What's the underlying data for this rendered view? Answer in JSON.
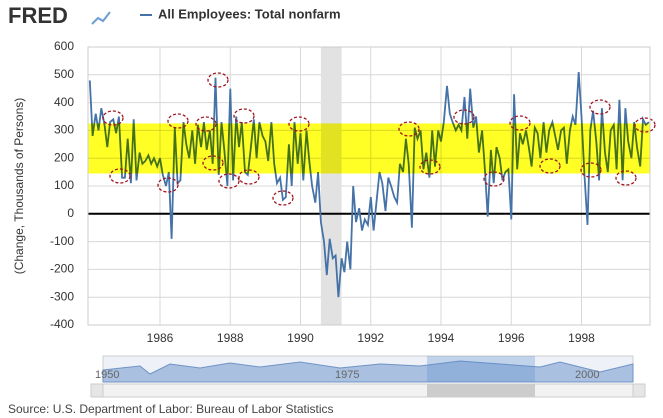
{
  "header": {
    "logo": "FRED"
  },
  "chart_data": {
    "type": "line",
    "y_label": "(Change, Thousands of Persons)",
    "source": "Source: U.S. Department of Labor: Bureau of Labor Statistics",
    "x": [
      1984.0,
      1984.08,
      1984.17,
      1984.25,
      1984.33,
      1984.42,
      1984.5,
      1984.58,
      1984.67,
      1984.75,
      1984.83,
      1984.92,
      1985.0,
      1985.08,
      1985.17,
      1985.25,
      1985.33,
      1985.42,
      1985.5,
      1985.58,
      1985.67,
      1985.75,
      1985.83,
      1985.92,
      1986.0,
      1986.08,
      1986.17,
      1986.25,
      1986.33,
      1986.42,
      1986.5,
      1986.58,
      1986.67,
      1986.75,
      1986.83,
      1986.92,
      1987.0,
      1987.08,
      1987.17,
      1987.25,
      1987.33,
      1987.42,
      1987.5,
      1987.58,
      1987.67,
      1987.75,
      1987.83,
      1987.92,
      1988.0,
      1988.08,
      1988.17,
      1988.25,
      1988.33,
      1988.42,
      1988.5,
      1988.58,
      1988.67,
      1988.75,
      1988.83,
      1988.92,
      1989.0,
      1989.08,
      1989.17,
      1989.25,
      1989.33,
      1989.42,
      1989.5,
      1989.58,
      1989.67,
      1989.75,
      1989.83,
      1989.92,
      1990.0,
      1990.08,
      1990.17,
      1990.25,
      1990.33,
      1990.42,
      1990.5,
      1990.58,
      1990.67,
      1990.75,
      1990.83,
      1990.92,
      1991.0,
      1991.08,
      1991.17,
      1991.25,
      1991.33,
      1991.42,
      1991.5,
      1991.58,
      1991.67,
      1991.75,
      1991.83,
      1991.92,
      1992.0,
      1992.08,
      1992.17,
      1992.25,
      1992.33,
      1992.42,
      1992.5,
      1992.58,
      1992.67,
      1992.75,
      1992.83,
      1992.92,
      1993.0,
      1993.08,
      1993.17,
      1993.25,
      1993.33,
      1993.42,
      1993.5,
      1993.58,
      1993.67,
      1993.75,
      1993.83,
      1993.92,
      1994.0,
      1994.08,
      1994.17,
      1994.25,
      1994.33,
      1994.42,
      1994.5,
      1994.58,
      1994.67,
      1994.75,
      1994.83,
      1994.92,
      1995.0,
      1995.08,
      1995.17,
      1995.25,
      1995.33,
      1995.42,
      1995.5,
      1995.58,
      1995.67,
      1995.75,
      1995.83,
      1995.92,
      1996.0,
      1996.08,
      1996.17,
      1996.25,
      1996.33,
      1996.42,
      1996.5,
      1996.58,
      1996.67,
      1996.75,
      1996.83,
      1996.92,
      1997.0,
      1997.08,
      1997.17,
      1997.25,
      1997.33,
      1997.42,
      1997.5,
      1997.58,
      1997.67,
      1997.75,
      1997.83,
      1997.92,
      1998.0,
      1998.08,
      1998.17,
      1998.25,
      1998.33,
      1998.42,
      1998.5,
      1998.58,
      1998.67,
      1998.75,
      1998.83,
      1998.92,
      1999.0,
      1999.08,
      1999.17,
      1999.25,
      1999.33,
      1999.42,
      1999.5,
      1999.58,
      1999.67,
      1999.75,
      1999.83,
      1999.92
    ],
    "series": [
      {
        "name": "All Employees: Total nonfarm",
        "color": "#4572a7",
        "values": [
          480,
          280,
          360,
          300,
          380,
          320,
          240,
          330,
          340,
          290,
          350,
          130,
          130,
          270,
          110,
          340,
          120,
          220,
          180,
          190,
          210,
          180,
          200,
          170,
          200,
          140,
          100,
          150,
          -90,
          310,
          110,
          120,
          330,
          250,
          200,
          300,
          180,
          320,
          240,
          330,
          230,
          300,
          180,
          490,
          140,
          330,
          230,
          100,
          450,
          120,
          350,
          240,
          330,
          150,
          140,
          230,
          340,
          200,
          330,
          280,
          260,
          190,
          330,
          180,
          110,
          130,
          50,
          60,
          250,
          100,
          330,
          180,
          290,
          120,
          300,
          190,
          100,
          40,
          150,
          -30,
          -100,
          -220,
          -90,
          -160,
          -150,
          -300,
          -160,
          -210,
          -100,
          -200,
          100,
          -30,
          20,
          -60,
          -20,
          -40,
          60,
          -60,
          50,
          150,
          110,
          10,
          130,
          100,
          60,
          40,
          180,
          150,
          270,
          180,
          -50,
          310,
          270,
          300,
          160,
          220,
          130,
          300,
          170,
          300,
          260,
          330,
          460,
          360,
          330,
          300,
          320,
          300,
          420,
          270,
          450,
          310,
          350,
          220,
          300,
          160,
          -10,
          230,
          110,
          240,
          200,
          120,
          150,
          160,
          -20,
          430,
          160,
          290,
          250,
          300,
          240,
          170,
          310,
          290,
          200,
          330,
          220,
          300,
          330,
          280,
          230,
          300,
          310,
          180,
          300,
          350,
          320,
          510,
          350,
          150,
          -40,
          300,
          370,
          260,
          120,
          380,
          220,
          150,
          300,
          320,
          160,
          410,
          120,
          380,
          260,
          200,
          330,
          240,
          170,
          340,
          320,
          330
        ]
      }
    ],
    "xlim": [
      1983.95,
      1999.95
    ],
    "xticks": [
      1986,
      1988,
      1990,
      1992,
      1994,
      1996,
      1998
    ],
    "ylim": [
      -400,
      600
    ],
    "yticks": [
      -400,
      -300,
      -200,
      -100,
      0,
      100,
      200,
      300,
      400,
      500,
      600
    ],
    "grid": true,
    "highlight_band": {
      "from": 145,
      "to": 325,
      "color": "#ffff00"
    },
    "recession": {
      "from": 1990.58,
      "to": 1991.17,
      "color": "#e2e2e2"
    },
    "navigator_labels": [
      "1950",
      "1975",
      "2000"
    ]
  }
}
